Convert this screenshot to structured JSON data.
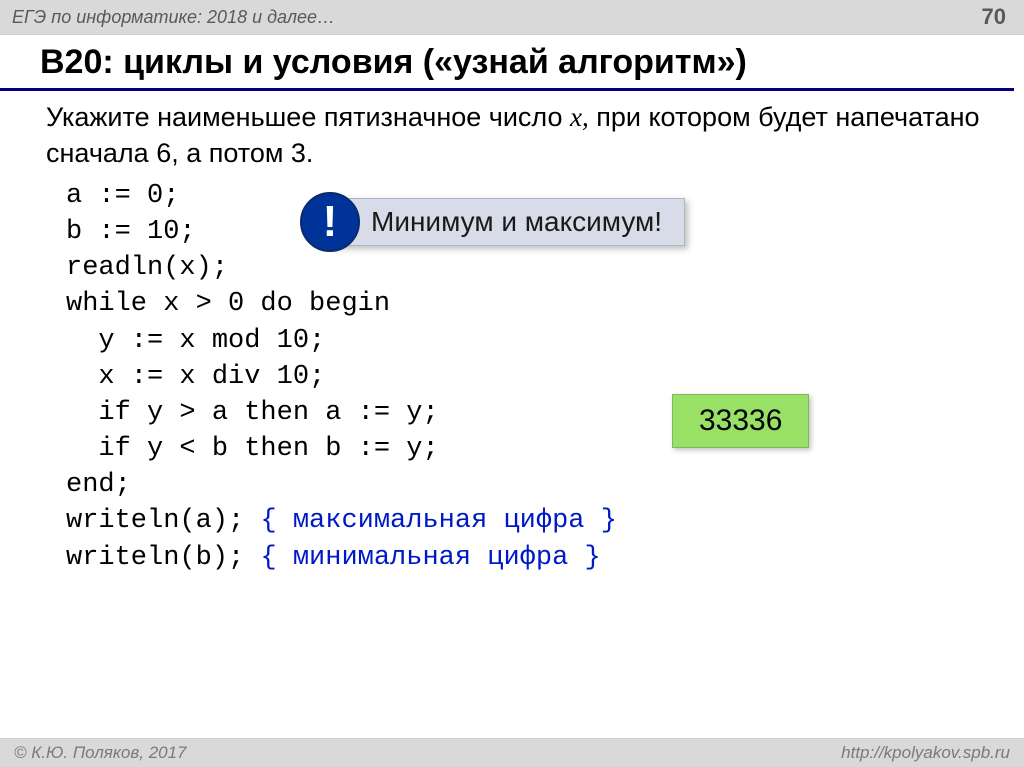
{
  "header": {
    "left": "ЕГЭ по информатике: 2018 и далее…",
    "page_number": "70"
  },
  "title": "B20: циклы и условия («узнай алгоритм»)",
  "task": {
    "prefix": "Укажите наименьшее пятизначное число ",
    "var": "x,",
    "suffix": " при котором будет напечатано сначала 6, а потом 3."
  },
  "code": {
    "lines": [
      "a := 0;",
      "b := 10;",
      "readln(x);",
      "while x > 0 do begin",
      "  y := x mod 10;",
      "  x := x div 10;",
      "  if y > a then a := y;",
      "  if y < b then b := y;",
      "end;"
    ],
    "writeln_a": "writeln(a); ",
    "comment_a": "{ максимальная цифра }",
    "writeln_b": "writeln(b); ",
    "comment_b": "{ минимальная цифра }"
  },
  "callout": {
    "icon": "!",
    "text": "Минимум и максимум!"
  },
  "answer": "33336",
  "footer": {
    "left": "© К.Ю. Поляков, 2017",
    "right": "http://kpolyakov.spb.ru"
  },
  "colors": {
    "header_bg": "#d9d9d9",
    "title_underline": "#00007a",
    "code_comment": "#0019c6",
    "excl_bg": "#003399",
    "callout_bg": "#d8dbe8",
    "answer_bg": "#99e066"
  }
}
